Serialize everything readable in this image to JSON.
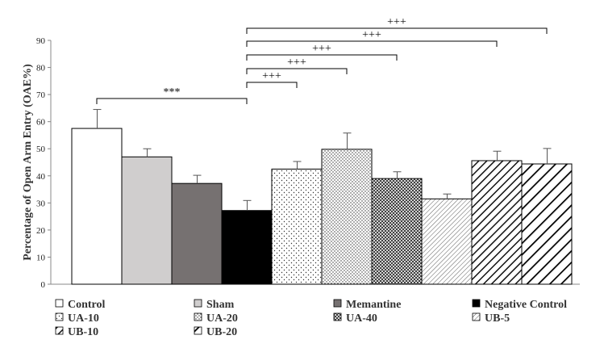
{
  "chart_data": {
    "type": "bar",
    "ylabel": "Percentage of Open Arm Entry (OAE%)",
    "ylim": [
      0,
      90
    ],
    "yticks": [
      0,
      10,
      20,
      30,
      40,
      50,
      60,
      70,
      80,
      90
    ],
    "grid": false,
    "legend_position": "bottom",
    "categories": [
      "Control",
      "Sham",
      "Memantine",
      "Negative Control",
      "UA-10",
      "UA-20",
      "UA-40",
      "UB-5",
      "UB-10",
      "UB-20"
    ],
    "values": [
      57.5,
      47,
      37.2,
      27.2,
      42.5,
      49.8,
      39,
      31.5,
      45.6,
      44.4
    ],
    "errors": [
      7,
      3,
      3,
      3.7,
      2.8,
      6,
      2.5,
      1.8,
      3.5,
      5.7
    ],
    "patterns": [
      "white",
      "light-gray",
      "dark-gray",
      "black",
      "dots-sparse",
      "dots-dense",
      "crosshatch",
      "diag-fine",
      "diag-medium",
      "diag-thick"
    ],
    "significance": [
      {
        "label": "***",
        "from": 0,
        "to": 3
      },
      {
        "label": "+++",
        "from": 3,
        "to": 4
      },
      {
        "label": "+++",
        "from": 3,
        "to": 5
      },
      {
        "label": "+++",
        "from": 3,
        "to": 6
      },
      {
        "label": "+++",
        "from": 3,
        "to": 8
      },
      {
        "label": "+++",
        "from": 3,
        "to": 9
      }
    ]
  }
}
